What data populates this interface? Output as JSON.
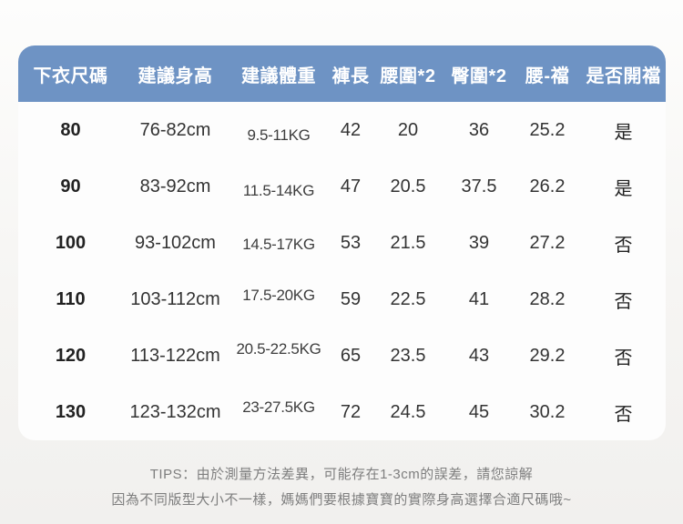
{
  "colors": {
    "header_bg": "#6e93c4",
    "header_text": "#ffffff",
    "card_bg": "#fdfdfd",
    "page_bg": "#f4f3f1",
    "body_text": "#333333",
    "tips_text": "#7e7e7e"
  },
  "table": {
    "headers": [
      "下衣尺碼",
      "建議身高",
      "建議體重",
      "褲長",
      "腰圍*2",
      "臀圍*2",
      "腰-襠",
      "是否開襠"
    ],
    "rows": [
      {
        "size": "80",
        "height": "76-82cm",
        "weight": "9.5-11KG",
        "pants_length": "42",
        "waist_x2": "20",
        "hip_x2": "36",
        "waist_crotch": "25.2",
        "open_crotch": "是"
      },
      {
        "size": "90",
        "height": "83-92cm",
        "weight": "11.5-14KG",
        "pants_length": "47",
        "waist_x2": "20.5",
        "hip_x2": "37.5",
        "waist_crotch": "26.2",
        "open_crotch": "是"
      },
      {
        "size": "100",
        "height": "93-102cm",
        "weight": "14.5-17KG",
        "pants_length": "53",
        "waist_x2": "21.5",
        "hip_x2": "39",
        "waist_crotch": "27.2",
        "open_crotch": "否"
      },
      {
        "size": "110",
        "height": "103-112cm",
        "weight": "17.5-20KG",
        "pants_length": "59",
        "waist_x2": "22.5",
        "hip_x2": "41",
        "waist_crotch": "28.2",
        "open_crotch": "否"
      },
      {
        "size": "120",
        "height": "113-122cm",
        "weight": "20.5-22.5KG",
        "pants_length": "65",
        "waist_x2": "23.5",
        "hip_x2": "43",
        "waist_crotch": "29.2",
        "open_crotch": "否"
      },
      {
        "size": "130",
        "height": "123-132cm",
        "weight": "23-27.5KG",
        "pants_length": "72",
        "waist_x2": "24.5",
        "hip_x2": "45",
        "waist_crotch": "30.2",
        "open_crotch": "否"
      }
    ]
  },
  "tips": {
    "line1": "TIPS：由於測量方法差異，可能存在1-3cm的誤差，請您諒解",
    "line2": "因為不同版型大小不一樣，媽媽們要根據寶寶的實際身高選擇合適尺碼哦~"
  }
}
